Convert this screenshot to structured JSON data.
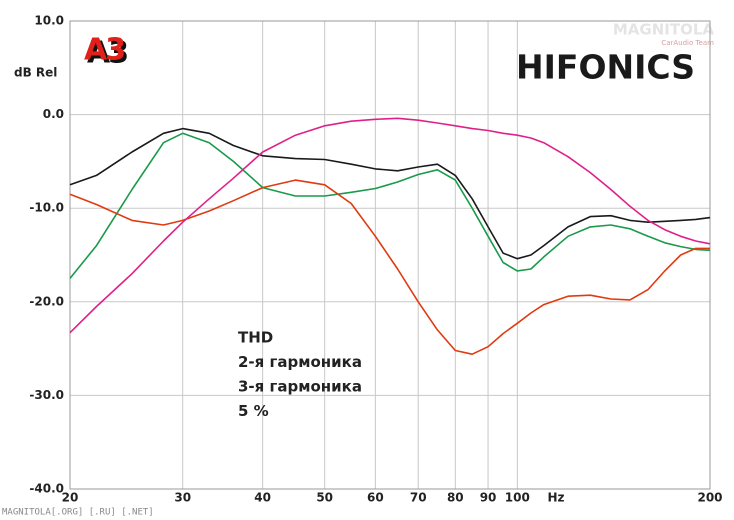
{
  "chart_data": {
    "type": "line",
    "y_label": "dB Rel",
    "x_label": "Hz",
    "xscale": "log",
    "grid": true,
    "xlim": [
      20,
      200
    ],
    "ylim": [
      -40,
      10
    ],
    "xticks": [
      20,
      30,
      40,
      50,
      60,
      70,
      80,
      90,
      100,
      200
    ],
    "yticks": [
      {
        "value": 10,
        "label": "10.0"
      },
      {
        "value": 0,
        "label": "0.0"
      },
      {
        "value": -10,
        "label": "-10.0"
      },
      {
        "value": -20,
        "label": "-20.0"
      },
      {
        "value": -30,
        "label": "-30.0"
      },
      {
        "value": -40,
        "label": "-40.0"
      }
    ],
    "x": [
      20,
      22,
      25,
      28,
      30,
      33,
      36,
      40,
      45,
      50,
      55,
      60,
      65,
      70,
      75,
      80,
      85,
      90,
      95,
      100,
      105,
      110,
      120,
      130,
      140,
      150,
      160,
      170,
      180,
      190,
      200
    ],
    "series": [
      {
        "name": "THD",
        "color": "#1a1a1a",
        "values": [
          -7.5,
          -6.5,
          -4,
          -2,
          -1.5,
          -2,
          -3.3,
          -4.4,
          -4.7,
          -4.8,
          -5.3,
          -5.8,
          -6.0,
          -5.6,
          -5.3,
          -6.5,
          -9,
          -12,
          -14.8,
          -15.4,
          -15,
          -14,
          -12,
          -10.9,
          -10.8,
          -11.3,
          -11.5,
          -11.4,
          -11.3,
          -11.2,
          -11
        ]
      },
      {
        "name": "2-я гармоника",
        "color": "#1a9a4a",
        "values": [
          -17.5,
          -14,
          -8,
          -3,
          -2,
          -3,
          -5,
          -7.8,
          -8.7,
          -8.7,
          -8.3,
          -7.9,
          -7.2,
          -6.4,
          -5.9,
          -7,
          -10,
          -13,
          -15.8,
          -16.7,
          -16.5,
          -15.2,
          -13,
          -12,
          -11.8,
          -12.2,
          -13,
          -13.7,
          -14.1,
          -14.4,
          -14.5
        ]
      },
      {
        "name": "3-я гармоника",
        "color": "#e03a10",
        "values": [
          -8.5,
          -9.6,
          -11.3,
          -11.8,
          -11.3,
          -10.3,
          -9.2,
          -7.8,
          -7.0,
          -7.5,
          -9.5,
          -13,
          -16.5,
          -20,
          -23,
          -25.2,
          -25.6,
          -24.8,
          -23.4,
          -22.3,
          -21.2,
          -20.3,
          -19.4,
          -19.3,
          -19.7,
          -19.8,
          -18.7,
          -16.7,
          -15,
          -14.3,
          -14.3
        ]
      },
      {
        "name": "5 %",
        "color": "#e0208a",
        "values": [
          -23.3,
          -20.5,
          -17,
          -13.5,
          -11.5,
          -9,
          -6.8,
          -4,
          -2.2,
          -1.2,
          -0.7,
          -0.5,
          -0.4,
          -0.6,
          -0.9,
          -1.2,
          -1.5,
          -1.7,
          -2,
          -2.2,
          -2.5,
          -3,
          -4.5,
          -6.2,
          -8,
          -9.8,
          -11.3,
          -12.3,
          -13,
          -13.5,
          -13.8
        ]
      }
    ]
  },
  "branding": {
    "logo": "A3",
    "brand": "HIFONICS",
    "watermark": "MAGNITOLA",
    "watermark_sub": "CarAudio Team",
    "footer": "MAGNITOLA[.ORG] [.RU] [.NET]"
  }
}
